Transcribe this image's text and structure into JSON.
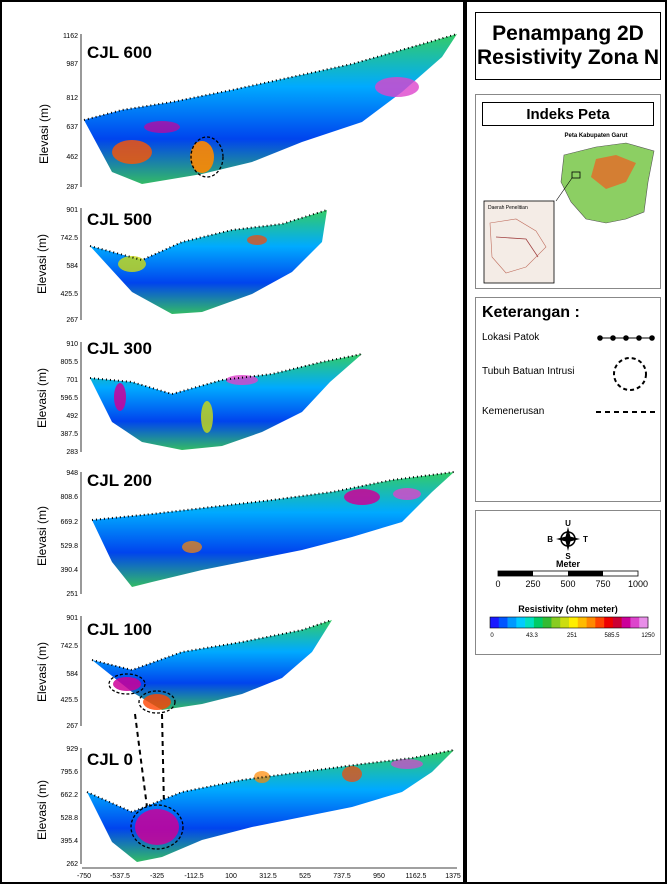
{
  "title": {
    "line1": "Penampang 2D",
    "line2": "Resistivity Zona N"
  },
  "index_map": {
    "heading": "Indeks Peta",
    "region_label": "Peta Kabupaten Garut",
    "inset_label": "Daerah Penelitian"
  },
  "legend": {
    "heading": "Keterangan :",
    "items": [
      {
        "label": "Lokasi Patok",
        "symbol": "dot-line"
      },
      {
        "label": "Tubuh Batuan Intrusi",
        "symbol": "dashed-circle"
      },
      {
        "label": "Kemenerusan",
        "symbol": "dashed-line"
      }
    ]
  },
  "compass": {
    "north": "U",
    "south": "S",
    "west": "B",
    "east": "T"
  },
  "scale_bar": {
    "label": "Meter",
    "ticks": [
      "0",
      "250",
      "500",
      "750",
      "1000"
    ]
  },
  "colorbar": {
    "label": "Resistivity (ohm meter)",
    "ticks": [
      "0",
      "43.3",
      "251",
      "585.5",
      "1250"
    ],
    "colors": [
      "#1a1aff",
      "#0055ff",
      "#0099ff",
      "#00ccff",
      "#00e0c0",
      "#00cc66",
      "#33bb33",
      "#88cc22",
      "#ccdd11",
      "#ffee00",
      "#ffbb00",
      "#ff8800",
      "#ff4400",
      "#ee0000",
      "#cc0033",
      "#cc0099",
      "#dd44cc",
      "#e88ee8"
    ]
  },
  "y_axis_label": "Elevasi (m)",
  "x_axis_ticks": [
    "-750",
    "-537.5",
    "-325",
    "-112.5",
    "100",
    "312.5",
    "525",
    "737.5",
    "950",
    "1162.5",
    "1375"
  ],
  "profiles": [
    {
      "name": "CJL 600",
      "y_ticks": [
        "1162",
        "987",
        "812",
        "637",
        "462",
        "287"
      ]
    },
    {
      "name": "CJL 500",
      "y_ticks": [
        "901",
        "742.5",
        "584",
        "425.5",
        "267"
      ]
    },
    {
      "name": "CJL 300",
      "y_ticks": [
        "910",
        "805.5",
        "701",
        "596.5",
        "492",
        "387.5",
        "283"
      ]
    },
    {
      "name": "CJL 200",
      "y_ticks": [
        "948",
        "808.6",
        "669.2",
        "529.8",
        "390.4",
        "251"
      ]
    },
    {
      "name": "CJL 100",
      "y_ticks": [
        "901",
        "742.5",
        "584",
        "425.5",
        "267"
      ]
    },
    {
      "name": "CJL 0",
      "y_ticks": [
        "929",
        "795.6",
        "662.2",
        "528.8",
        "395.4",
        "262"
      ]
    }
  ]
}
